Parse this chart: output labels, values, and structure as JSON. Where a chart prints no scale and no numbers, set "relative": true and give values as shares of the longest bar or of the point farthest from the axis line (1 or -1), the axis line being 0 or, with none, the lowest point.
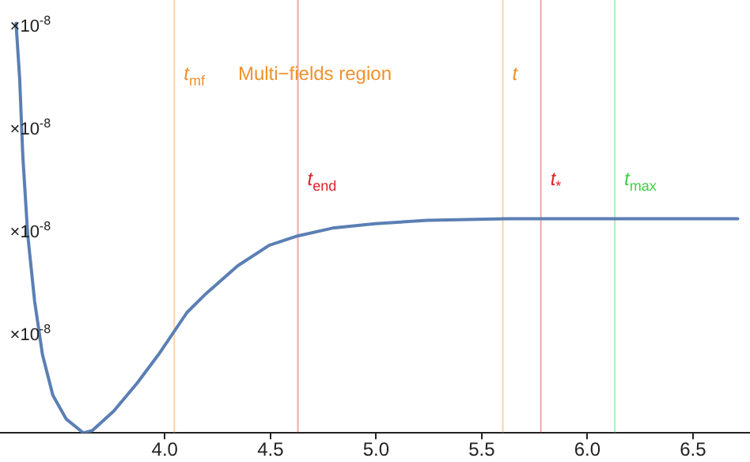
{
  "chart_data": {
    "type": "line",
    "relative": true,
    "x": [
      3.296,
      3.313,
      3.328,
      3.351,
      3.384,
      3.421,
      3.47,
      3.533,
      3.615,
      3.658,
      3.758,
      3.87,
      3.97,
      4.105,
      4.195,
      4.345,
      4.494,
      4.629,
      4.794,
      4.996,
      5.243,
      5.618,
      6.712
    ],
    "series": [
      {
        "color": "#5b7fb4",
        "values": [
          1.0,
          0.866,
          0.676,
          0.485,
          0.321,
          0.191,
          0.092,
          0.034,
          0,
          0.006,
          0.053,
          0.122,
          0.191,
          0.294,
          0.34,
          0.408,
          0.458,
          0.481,
          0.5,
          0.511,
          0.519,
          0.523,
          0.523
        ]
      }
    ],
    "xlim": [
      3.22,
      6.77
    ],
    "xticks": [
      {
        "value": 4,
        "label": "4.0"
      },
      {
        "value": 4.5,
        "label": "4.5"
      },
      {
        "value": 5,
        "label": "5.0"
      },
      {
        "value": 5.5,
        "label": "5.5"
      },
      {
        "value": 6,
        "label": "6.0"
      },
      {
        "value": 6.5,
        "label": "6.5"
      }
    ],
    "grid": false,
    "legend": false,
    "marker": "none",
    "line_style": "solid",
    "ref_lines": [
      {
        "axis": "x",
        "value": 4.045,
        "label": "t$_{mf}$",
        "color": "#f0922a"
      },
      {
        "axis": "x",
        "value": 4.63,
        "label": "t$_{end}$",
        "color": "#e0202a"
      },
      {
        "axis": "x",
        "value": 5.6,
        "label": "t",
        "color": "#f0922a"
      },
      {
        "axis": "x",
        "value": 5.78,
        "label": "t$_{*}$",
        "color": "#e0202a"
      },
      {
        "axis": "x",
        "value": 6.13,
        "label": "t$_{max}$",
        "color": "#40d040"
      }
    ],
    "annotations": [
      "Multi−fields region",
      "×10$^{-8}$",
      "×10$^{-8}$",
      "×10$^{-8}$",
      "×10$^{-8}$"
    ]
  }
}
